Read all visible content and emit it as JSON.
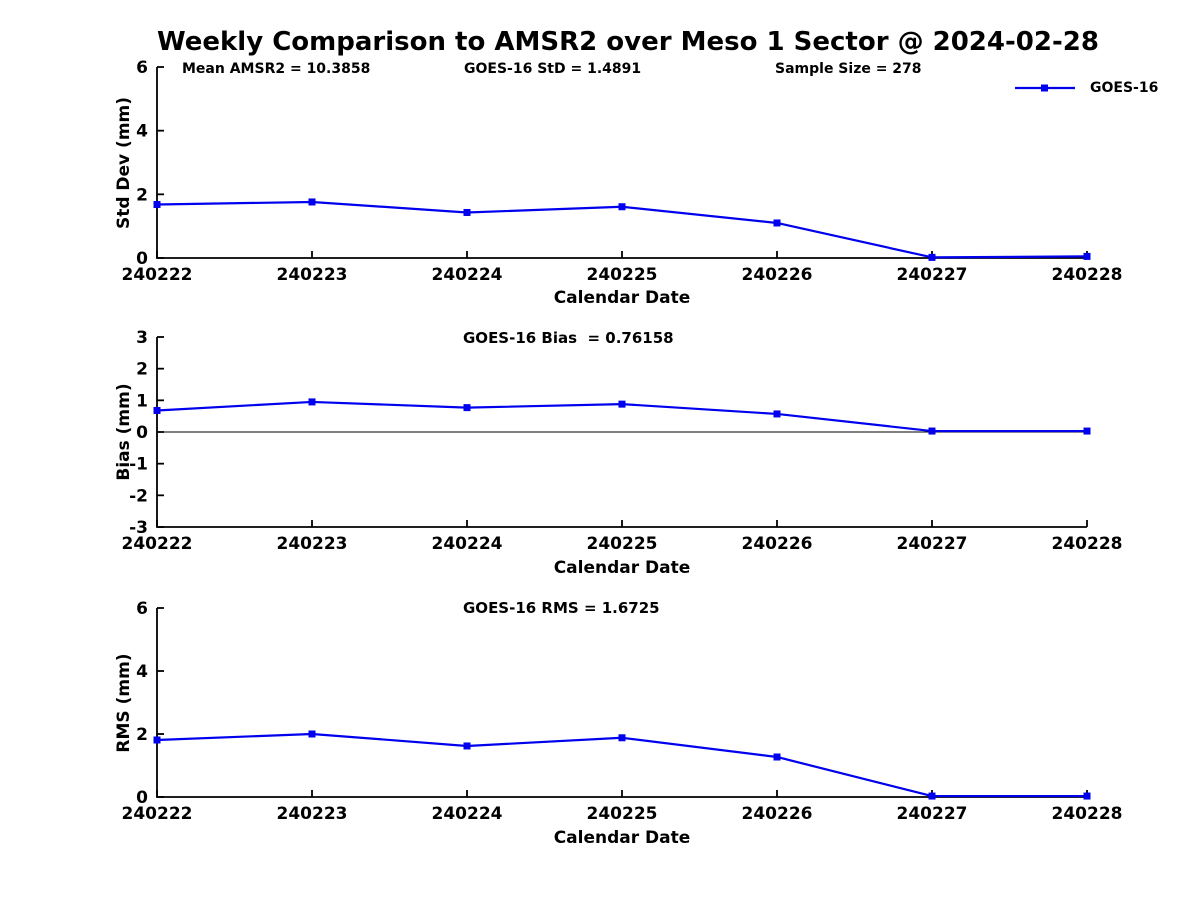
{
  "figure": {
    "title": "Weekly Comparison to AMSR2 over Meso 1 Sector @ 2024-02-28",
    "background_color": "#ffffff",
    "line_color": "#0000ee",
    "axis_color": "#000000",
    "text_color": "#000000"
  },
  "annotations": {
    "mean_amsr2": "Mean AMSR2 = 10.3858",
    "goes16_std": "GOES-16 StD = 1.4891",
    "sample_size": "Sample Size = 278"
  },
  "legend": {
    "label": "GOES-16",
    "position": "top-right",
    "marker": "filled-square",
    "marker_color": "#0000ee"
  },
  "chart_data": [
    {
      "id": "std-dev",
      "type": "line",
      "title": "",
      "categories": [
        "240222",
        "240223",
        "240224",
        "240225",
        "240226",
        "240227",
        "240228"
      ],
      "series": [
        {
          "name": "GOES-16",
          "values": [
            1.68,
            1.76,
            1.43,
            1.61,
            1.1,
            0.02,
            0.05
          ]
        }
      ],
      "xlabel": "Calendar Date",
      "ylabel": "Std Dev (mm)",
      "ylim": [
        0,
        6
      ],
      "yticks": [
        0,
        2,
        4,
        6
      ],
      "grid": false,
      "zero_line": false,
      "marker": "square"
    },
    {
      "id": "bias",
      "type": "line",
      "title": "GOES-16 Bias  = 0.76158",
      "categories": [
        "240222",
        "240223",
        "240224",
        "240225",
        "240226",
        "240227",
        "240228"
      ],
      "series": [
        {
          "name": "GOES-16",
          "values": [
            0.68,
            0.95,
            0.77,
            0.88,
            0.57,
            0.03,
            0.03
          ]
        }
      ],
      "xlabel": "Calendar Date",
      "ylabel": "Bias (mm)",
      "ylim": [
        -3,
        3
      ],
      "yticks": [
        -3,
        -2,
        -1,
        0,
        1,
        2,
        3
      ],
      "grid": false,
      "zero_line": true,
      "marker": "square"
    },
    {
      "id": "rms",
      "type": "line",
      "title": "GOES-16 RMS = 1.6725",
      "categories": [
        "240222",
        "240223",
        "240224",
        "240225",
        "240226",
        "240227",
        "240228"
      ],
      "series": [
        {
          "name": "GOES-16",
          "values": [
            1.81,
            2.0,
            1.62,
            1.88,
            1.27,
            0.03,
            0.03
          ]
        }
      ],
      "xlabel": "Calendar Date",
      "ylabel": "RMS (mm)",
      "ylim": [
        0,
        6
      ],
      "yticks": [
        0,
        2,
        4,
        6
      ],
      "grid": false,
      "zero_line": false,
      "marker": "square"
    }
  ]
}
